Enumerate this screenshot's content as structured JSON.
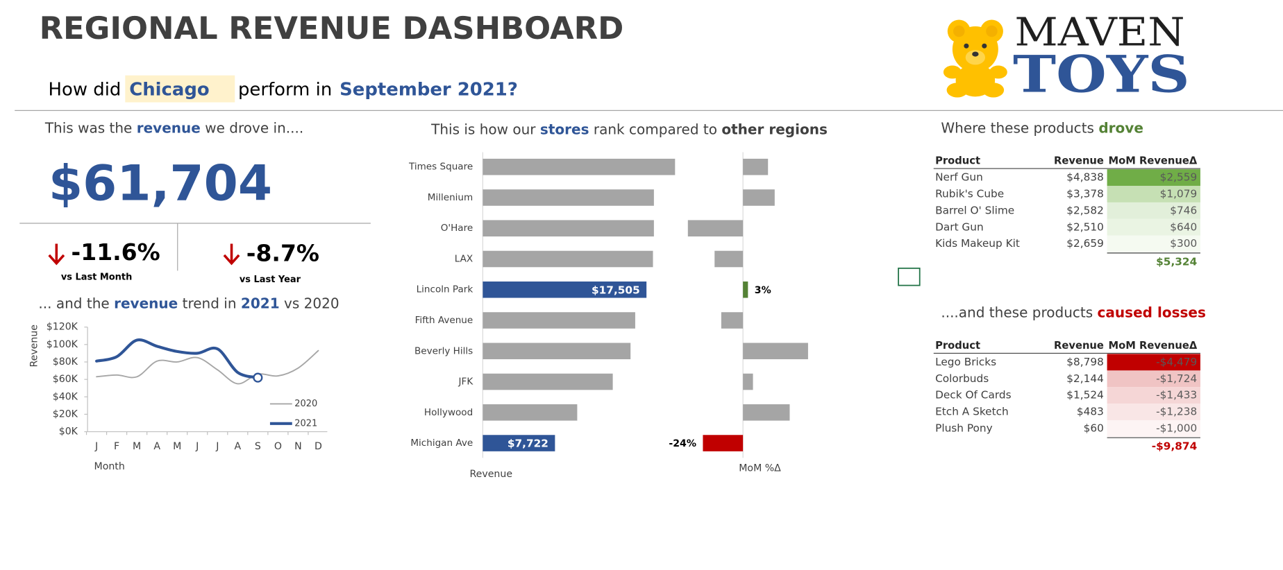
{
  "header": {
    "title": "REGIONAL REVENUE DASHBOARD",
    "question": {
      "prefix": "How did",
      "city": "Chicago",
      "middle": "perform in",
      "period": "September 2021?"
    }
  },
  "logo": {
    "top": "MAVEN",
    "bottom": "TOYS"
  },
  "kpi": {
    "intro": [
      "This was the ",
      "revenue",
      " we drove in...."
    ],
    "value": "$61,704",
    "changes": [
      {
        "value": "-11.6%",
        "label": "vs Last Month"
      },
      {
        "value": "-8.7%",
        "label": "vs Last Year"
      }
    ]
  },
  "chart_data": [
    {
      "type": "line",
      "title": [
        "... and the ",
        "revenue",
        " trend in ",
        "2021",
        " vs 2020"
      ],
      "x_label": "Month",
      "y_label": "Revenue",
      "categories": [
        "J",
        "F",
        "M",
        "A",
        "M",
        "J",
        "J",
        "A",
        "S",
        "O",
        "N",
        "D"
      ],
      "ylim": [
        0,
        120000
      ],
      "yticks": [
        {
          "value": 0,
          "label": "$0K"
        },
        {
          "value": 20000,
          "label": "$20K"
        },
        {
          "value": 40000,
          "label": "$40K"
        },
        {
          "value": 60000,
          "label": "$60K"
        },
        {
          "value": 80000,
          "label": "$80K"
        },
        {
          "value": 100000,
          "label": "$100K"
        },
        {
          "value": 120000,
          "label": "$120K"
        }
      ],
      "smooth": true,
      "series": [
        {
          "name": "2020",
          "color": "#a6a6a6",
          "width": 1.6,
          "values": [
            63000,
            65000,
            63000,
            81000,
            80000,
            85000,
            71000,
            55000,
            66000,
            64000,
            73000,
            93000
          ]
        },
        {
          "name": "2021",
          "color": "#2f5597",
          "width": 3.5,
          "end_marker": true,
          "values": [
            81000,
            86000,
            105000,
            98000,
            92000,
            90000,
            95000,
            68000,
            62000,
            null,
            null,
            null
          ]
        }
      ]
    },
    {
      "type": "bar",
      "orientation": "horizontal",
      "title": [
        "This is how our ",
        "stores",
        " rank compared to ",
        "other regions"
      ],
      "categories": [
        "Times Square",
        "Millenium",
        "O'Hare",
        "LAX",
        "Lincoln Park",
        "Fifth Avenue",
        "Beverly Hills",
        "JFK",
        "Hollywood",
        "Michigan Ave"
      ],
      "series": [
        {
          "name": "Revenue",
          "values": [
            20560,
            18300,
            18300,
            18200,
            17505,
            16300,
            15800,
            13900,
            10100,
            7722
          ],
          "value_labels": [
            null,
            null,
            null,
            null,
            "$17,505",
            null,
            null,
            null,
            null,
            "$7,722"
          ],
          "colors": [
            "#a5a5a5",
            "#a5a5a5",
            "#a5a5a5",
            "#a5a5a5",
            "#2f5597",
            "#a5a5a5",
            "#a5a5a5",
            "#a5a5a5",
            "#a5a5a5",
            "#2f5597"
          ]
        },
        {
          "name": "MoM %Δ",
          "values": [
            15,
            19,
            -33,
            -17,
            3,
            -13,
            39,
            6,
            28,
            -24
          ],
          "value_labels": [
            null,
            null,
            null,
            null,
            "3%",
            null,
            null,
            null,
            null,
            "-24%"
          ],
          "colors": [
            "#a5a5a5",
            "#a5a5a5",
            "#a5a5a5",
            "#a5a5a5",
            "#548235",
            "#a5a5a5",
            "#a5a5a5",
            "#a5a5a5",
            "#a5a5a5",
            "#c00000"
          ]
        }
      ]
    }
  ],
  "tables": [
    {
      "title": [
        "Where these products ",
        "drove"
      ],
      "title_color": "#548235",
      "columns": [
        "Product",
        "Revenue",
        "MoM RevenueΔ"
      ],
      "rows": [
        [
          "Nerf Gun",
          "$4,838",
          "$2,559"
        ],
        [
          "Rubik's Cube",
          "$3,378",
          "$1,079"
        ],
        [
          "Barrel O' Slime",
          "$2,582",
          "$746"
        ],
        [
          "Dart Gun",
          "$2,510",
          "$640"
        ],
        [
          "Kids Makeup Kit",
          "$2,659",
          "$300"
        ]
      ],
      "total": "$5,324",
      "colors": [
        "#70ad47",
        "#c6e0b4",
        "#e2efda",
        "#eaf4e3",
        "#f5faf1"
      ]
    },
    {
      "title": [
        "....and these products ",
        "caused losses"
      ],
      "title_color": "#c00000",
      "columns": [
        "Product",
        "Revenue",
        "MoM RevenueΔ"
      ],
      "rows": [
        [
          "Lego Bricks",
          "$8,798",
          "-$4,479"
        ],
        [
          "Colorbuds",
          "$2,144",
          "-$1,724"
        ],
        [
          "Deck Of Cards",
          "$1,524",
          "-$1,433"
        ],
        [
          "Etch A Sketch",
          "$483",
          "-$1,238"
        ],
        [
          "Plush Pony",
          "$60",
          "-$1,000"
        ]
      ],
      "total": "-$9,874",
      "colors": [
        "#c00000",
        "#f0c4c4",
        "#f5d6d6",
        "#f9e6e6",
        "#fdf4f4"
      ]
    }
  ]
}
